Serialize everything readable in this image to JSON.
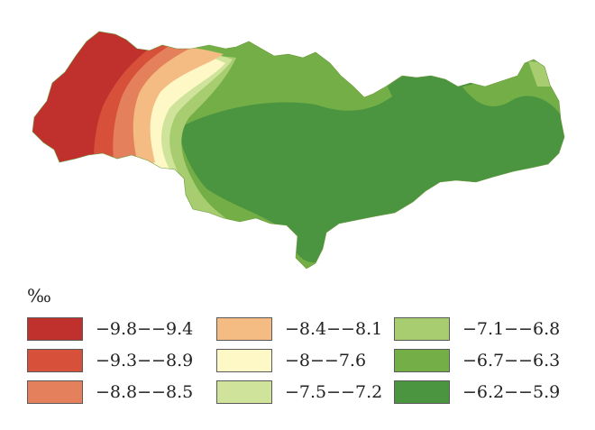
{
  "unit_label": "‰",
  "legend": [
    {
      "label": "−9.8−−9.4",
      "color": "#c0312d"
    },
    {
      "label": "−9.3−−8.9",
      "color": "#d6503a"
    },
    {
      "label": "−8.8−−8.5",
      "color": "#e4805c"
    },
    {
      "label": "−8.4−−8.1",
      "color": "#f4bb82"
    },
    {
      "label": "−8−−7.6",
      "color": "#fdf8c6"
    },
    {
      "label": "−7.5−−7.2",
      "color": "#cfe49a"
    },
    {
      "label": "−7.1−−6.8",
      "color": "#a7cd70"
    },
    {
      "label": "−6.7−−6.3",
      "color": "#74ae46"
    },
    {
      "label": "−6.2−−5.9",
      "color": "#4b9440"
    }
  ]
}
